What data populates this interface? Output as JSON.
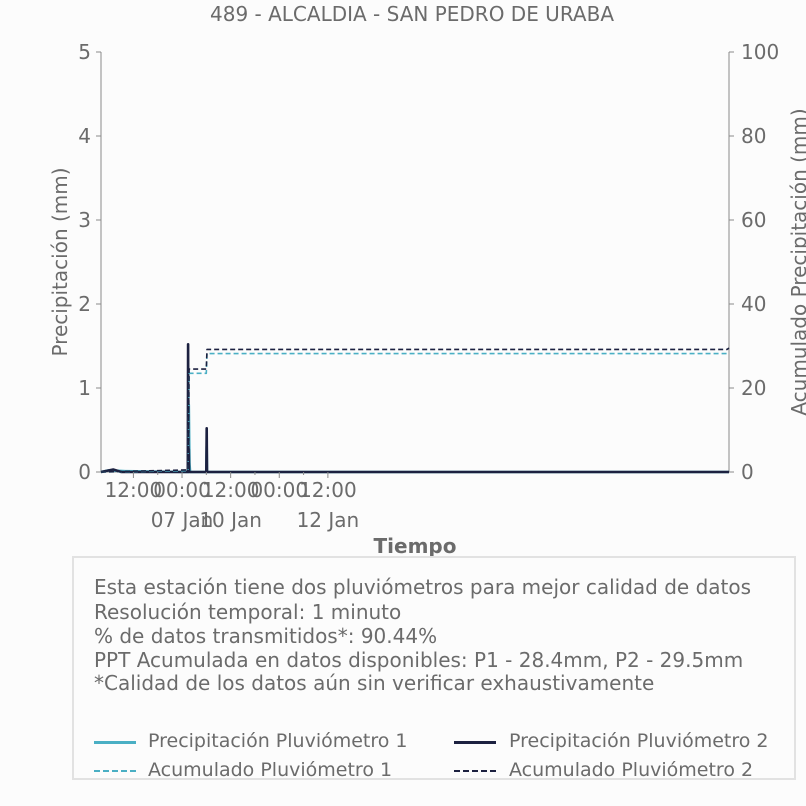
{
  "chart_data": {
    "type": "line",
    "title": "489 - ALCALDIA - SAN PEDRO DE URABA",
    "xlabel": "Tiempo",
    "ylabel_left": "Precipitación (mm)",
    "ylabel_right": "Acumulado Precipitación (mm)",
    "ylim_left": [
      0,
      5
    ],
    "ylim_right": [
      0,
      100
    ],
    "yticks_left": [
      "0",
      "1",
      "2",
      "3",
      "4",
      "5"
    ],
    "yticks_right": [
      "0",
      "20",
      "40",
      "60",
      "80",
      "100"
    ],
    "xlim": [
      "2025-01-06T04:00",
      "2025-01-12T15:00"
    ],
    "xticks": [
      {
        "t": "2025-01-06T12:00",
        "label": "12:00",
        "sub": ""
      },
      {
        "t": "2025-01-07T00:00",
        "label": "00:00",
        "sub": "07 Jan"
      },
      {
        "t": "2025-01-07T12:00",
        "label": "12:00",
        "sub": "10 Jan"
      },
      {
        "t": "2025-01-08T00:00",
        "label": "00:00",
        "sub": ""
      },
      {
        "t": "2025-01-08T12:00",
        "label": "12:00",
        "sub": "12 Jan"
      }
    ],
    "series": [
      {
        "name": "Precipitación Pluviómetro 1",
        "axis": "left",
        "style": "solid",
        "color": "#4aafc4",
        "points": [
          [
            "2025-01-06T04:00",
            0
          ],
          [
            "2025-01-06T06:00",
            0.02
          ],
          [
            "2025-01-06T10:00",
            0.01
          ],
          [
            "2025-01-07T01:30",
            0
          ],
          [
            "2025-01-07T01:40",
            0.8
          ],
          [
            "2025-01-07T01:50",
            0.1
          ],
          [
            "2025-01-07T02:00",
            0
          ],
          [
            "2025-01-07T06:00",
            0
          ],
          [
            "2025-01-07T06:05",
            0.3
          ],
          [
            "2025-01-07T06:10",
            0
          ],
          [
            "2025-01-12T15:00",
            0
          ]
        ]
      },
      {
        "name": "Precipitación Pluviómetro 2",
        "axis": "left",
        "style": "solid",
        "color": "#1c2140",
        "points": [
          [
            "2025-01-06T04:00",
            0
          ],
          [
            "2025-01-06T07:00",
            0.03
          ],
          [
            "2025-01-06T09:00",
            0
          ],
          [
            "2025-01-07T01:25",
            0
          ],
          [
            "2025-01-07T01:30",
            1.52
          ],
          [
            "2025-01-07T01:35",
            0.25
          ],
          [
            "2025-01-07T01:40",
            0.27
          ],
          [
            "2025-01-07T01:45",
            0
          ],
          [
            "2025-01-07T06:00",
            0
          ],
          [
            "2025-01-07T06:05",
            0.52
          ],
          [
            "2025-01-07T06:10",
            0
          ],
          [
            "2025-01-12T15:00",
            0
          ]
        ]
      },
      {
        "name": "Acumulado Pluviómetro 1",
        "axis": "right",
        "style": "dashed",
        "color": "#4aafc4",
        "points": [
          [
            "2025-01-06T04:00",
            0
          ],
          [
            "2025-01-07T01:30",
            0.3
          ],
          [
            "2025-01-07T01:45",
            23.5
          ],
          [
            "2025-01-07T06:00",
            23.5
          ],
          [
            "2025-01-07T06:10",
            28.2
          ],
          [
            "2025-01-12T14:30",
            28.2
          ],
          [
            "2025-01-12T15:00",
            28.4
          ]
        ]
      },
      {
        "name": "Acumulado Pluviómetro 2",
        "axis": "right",
        "style": "dashed",
        "color": "#1c2140",
        "points": [
          [
            "2025-01-06T04:00",
            0
          ],
          [
            "2025-01-07T01:30",
            0.5
          ],
          [
            "2025-01-07T01:45",
            24.5
          ],
          [
            "2025-01-07T06:00",
            24.5
          ],
          [
            "2025-01-07T06:10",
            29.2
          ],
          [
            "2025-01-12T14:30",
            29.2
          ],
          [
            "2025-01-12T15:00",
            29.5
          ]
        ]
      }
    ],
    "grid": false
  },
  "info": {
    "lines": [
      "Esta estación tiene dos pluviómetros para mejor calidad de datos",
      "Resolución temporal: 1 minuto",
      "% de datos transmitidos*: 90.44%",
      "PPT Acumulada en datos disponibles: P1 - 28.4mm, P2 - 29.5mm",
      "*Calidad de los datos aún sin verificar exhaustivamente"
    ]
  }
}
